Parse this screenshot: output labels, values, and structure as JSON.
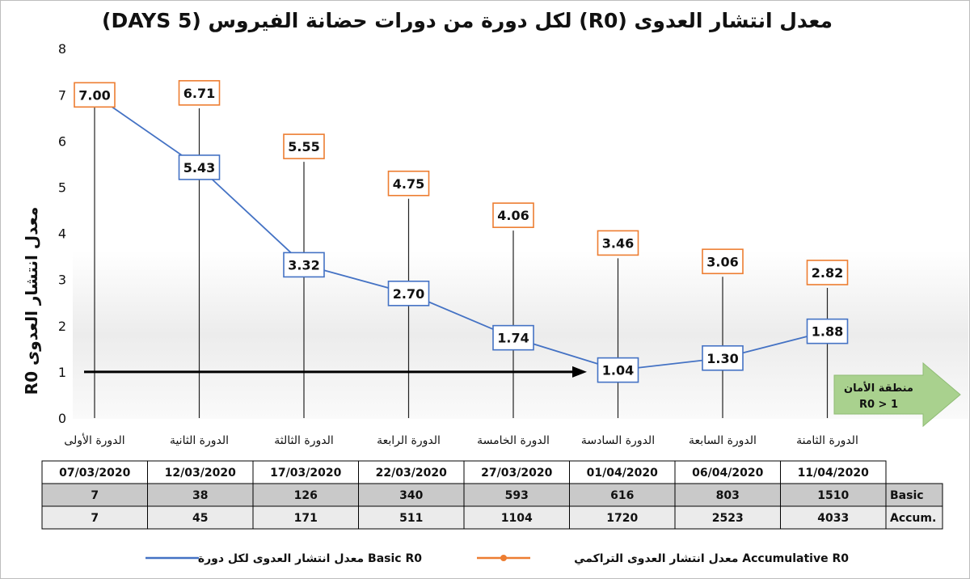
{
  "chart_data": {
    "type": "line",
    "title": "معدل انتشار العدوى (R0) لكل دورة من دورات حضانة الفيروس (5 DAYS)",
    "ylabel": "معدل انتشار العدوى R0",
    "xlabel": "",
    "ylim": [
      0,
      8
    ],
    "yticks": [
      "0",
      "1",
      "2",
      "3",
      "4",
      "5",
      "6",
      "7",
      "8"
    ],
    "categories": [
      "الدورة الأولى",
      "الدورة الثانية",
      "الدورة الثالثة",
      "الدورة الرابعة",
      "الدورة الخامسة",
      "الدورة السادسة",
      "الدورة السابعة",
      "الدورة الثامنة"
    ],
    "series": [
      {
        "name": "معدل انتشار العدوى التراكمي Accumulative R0",
        "color": "#ED7D31",
        "values": [
          7.0,
          6.71,
          5.55,
          4.75,
          4.06,
          3.46,
          3.06,
          2.82
        ],
        "labels": [
          "7.00",
          "6.71",
          "5.55",
          "4.75",
          "4.06",
          "3.46",
          "3.06",
          "2.82"
        ]
      },
      {
        "name": "معدل انتشار العدوى لكل دورة Basic R0",
        "color": "#4472C4",
        "values": [
          7.0,
          5.43,
          3.32,
          2.7,
          1.74,
          1.04,
          1.3,
          1.88
        ],
        "labels": [
          "",
          "5.43",
          "3.32",
          "2.70",
          "1.74",
          "1.04",
          "1.30",
          "1.88"
        ]
      }
    ],
    "reference_line": {
      "value": 1
    },
    "annotation": {
      "line1": "منطقة الأمان",
      "line2": "R0 > 1",
      "color": "#A9D18E"
    },
    "legend_position": "bottom",
    "grid": false
  },
  "table": {
    "dates": [
      "07/03/2020",
      "12/03/2020",
      "17/03/2020",
      "22/03/2020",
      "27/03/2020",
      "01/04/2020",
      "06/04/2020",
      "11/04/2020"
    ],
    "rows": [
      {
        "label": "Basic",
        "values": [
          "7",
          "38",
          "126",
          "340",
          "593",
          "616",
          "803",
          "1510"
        ]
      },
      {
        "label": "Accum.",
        "values": [
          "7",
          "45",
          "171",
          "511",
          "1104",
          "1720",
          "2523",
          "4033"
        ]
      }
    ]
  }
}
